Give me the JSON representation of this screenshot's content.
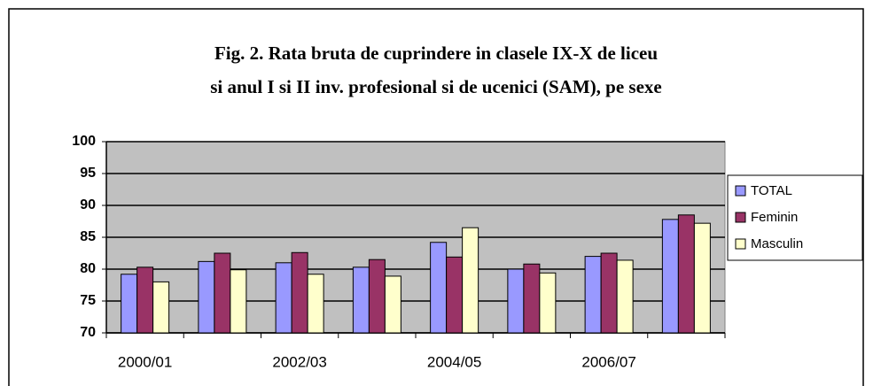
{
  "chart_data": {
    "type": "bar",
    "title": [
      "Fig. 2. Rata bruta de cuprindere in clasele IX-X de liceu",
      "si anul I si II inv. profesional si de ucenici (SAM), pe sexe"
    ],
    "categories": [
      "2000/01",
      null,
      "2002/03",
      null,
      "2004/05",
      null,
      "2006/07",
      null
    ],
    "series": [
      {
        "name": "TOTAL",
        "color": "#9999ff",
        "values": [
          79.2,
          81.2,
          81.0,
          80.3,
          84.2,
          80.0,
          82.0,
          87.8
        ]
      },
      {
        "name": "Feminin",
        "color": "#993366",
        "values": [
          80.3,
          82.5,
          82.6,
          81.5,
          81.9,
          80.8,
          82.5,
          88.5
        ]
      },
      {
        "name": "Masculin",
        "color": "#ffffcc",
        "values": [
          78.0,
          79.9,
          79.2,
          78.9,
          86.5,
          79.4,
          81.4,
          87.2
        ]
      }
    ],
    "ylim": [
      70,
      100
    ],
    "yticks": [
      70,
      75,
      80,
      85,
      90,
      95,
      100
    ],
    "grid": true,
    "legend": "right"
  }
}
